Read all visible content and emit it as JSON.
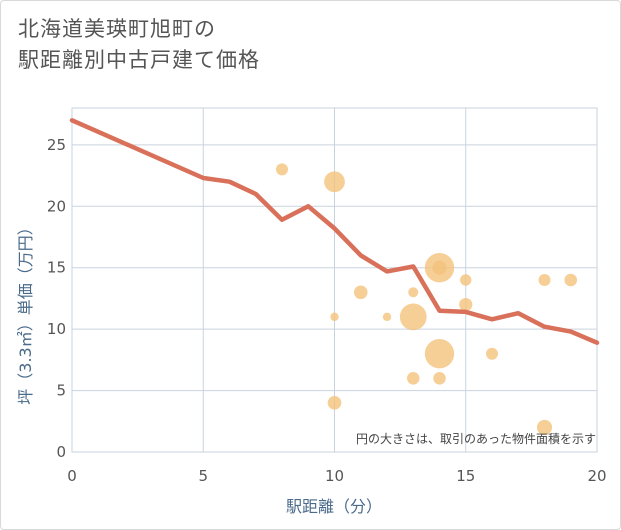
{
  "title_line1": "北海道美瑛町旭町の",
  "title_line2": "駅距離別中古戸建て価格",
  "chart_data": {
    "type": "scatter",
    "title": "北海道美瑛町旭町の駅距離別中古戸建て価格",
    "xlabel": "駅距離（分）",
    "ylabel": "坪（3.3㎡）単価（万円）",
    "xlim": [
      0,
      20
    ],
    "ylim": [
      0,
      28
    ],
    "xticks": [
      0,
      5,
      10,
      15,
      20
    ],
    "yticks": [
      0,
      5,
      10,
      15,
      20,
      25
    ],
    "grid": true,
    "note": "円の大きさは、取引のあった物件面積を示す",
    "colors": {
      "line": "#d9705a",
      "bubble": "#f3c27a"
    },
    "trend_line": {
      "x": [
        0,
        5,
        6,
        7,
        8,
        9,
        10,
        11,
        12,
        13,
        14,
        15,
        16,
        17,
        18,
        19,
        20
      ],
      "y": [
        27.0,
        22.3,
        22.0,
        21.0,
        18.9,
        20.0,
        18.2,
        16.0,
        14.7,
        15.1,
        11.5,
        11.4,
        10.8,
        11.3,
        10.2,
        9.8,
        8.9
      ]
    },
    "points": [
      {
        "x": 8,
        "y": 23,
        "size": 1
      },
      {
        "x": 10,
        "y": 22,
        "size": 3
      },
      {
        "x": 10,
        "y": 11,
        "size": 0.5
      },
      {
        "x": 10,
        "y": 4,
        "size": 1.3
      },
      {
        "x": 11,
        "y": 13,
        "size": 1.3
      },
      {
        "x": 12,
        "y": 11,
        "size": 0.5
      },
      {
        "x": 13,
        "y": 13,
        "size": 0.7
      },
      {
        "x": 13,
        "y": 11,
        "size": 5
      },
      {
        "x": 13,
        "y": 6,
        "size": 1.1
      },
      {
        "x": 14,
        "y": 15,
        "size": 6
      },
      {
        "x": 14,
        "y": 15,
        "size": 1.4
      },
      {
        "x": 14,
        "y": 8,
        "size": 6
      },
      {
        "x": 14,
        "y": 6,
        "size": 1.1
      },
      {
        "x": 15,
        "y": 14,
        "size": 0.9
      },
      {
        "x": 15,
        "y": 12,
        "size": 1.2
      },
      {
        "x": 16,
        "y": 8,
        "size": 1
      },
      {
        "x": 18,
        "y": 14,
        "size": 1
      },
      {
        "x": 18,
        "y": 2,
        "size": 1.6
      },
      {
        "x": 19,
        "y": 14,
        "size": 1.1
      }
    ]
  }
}
